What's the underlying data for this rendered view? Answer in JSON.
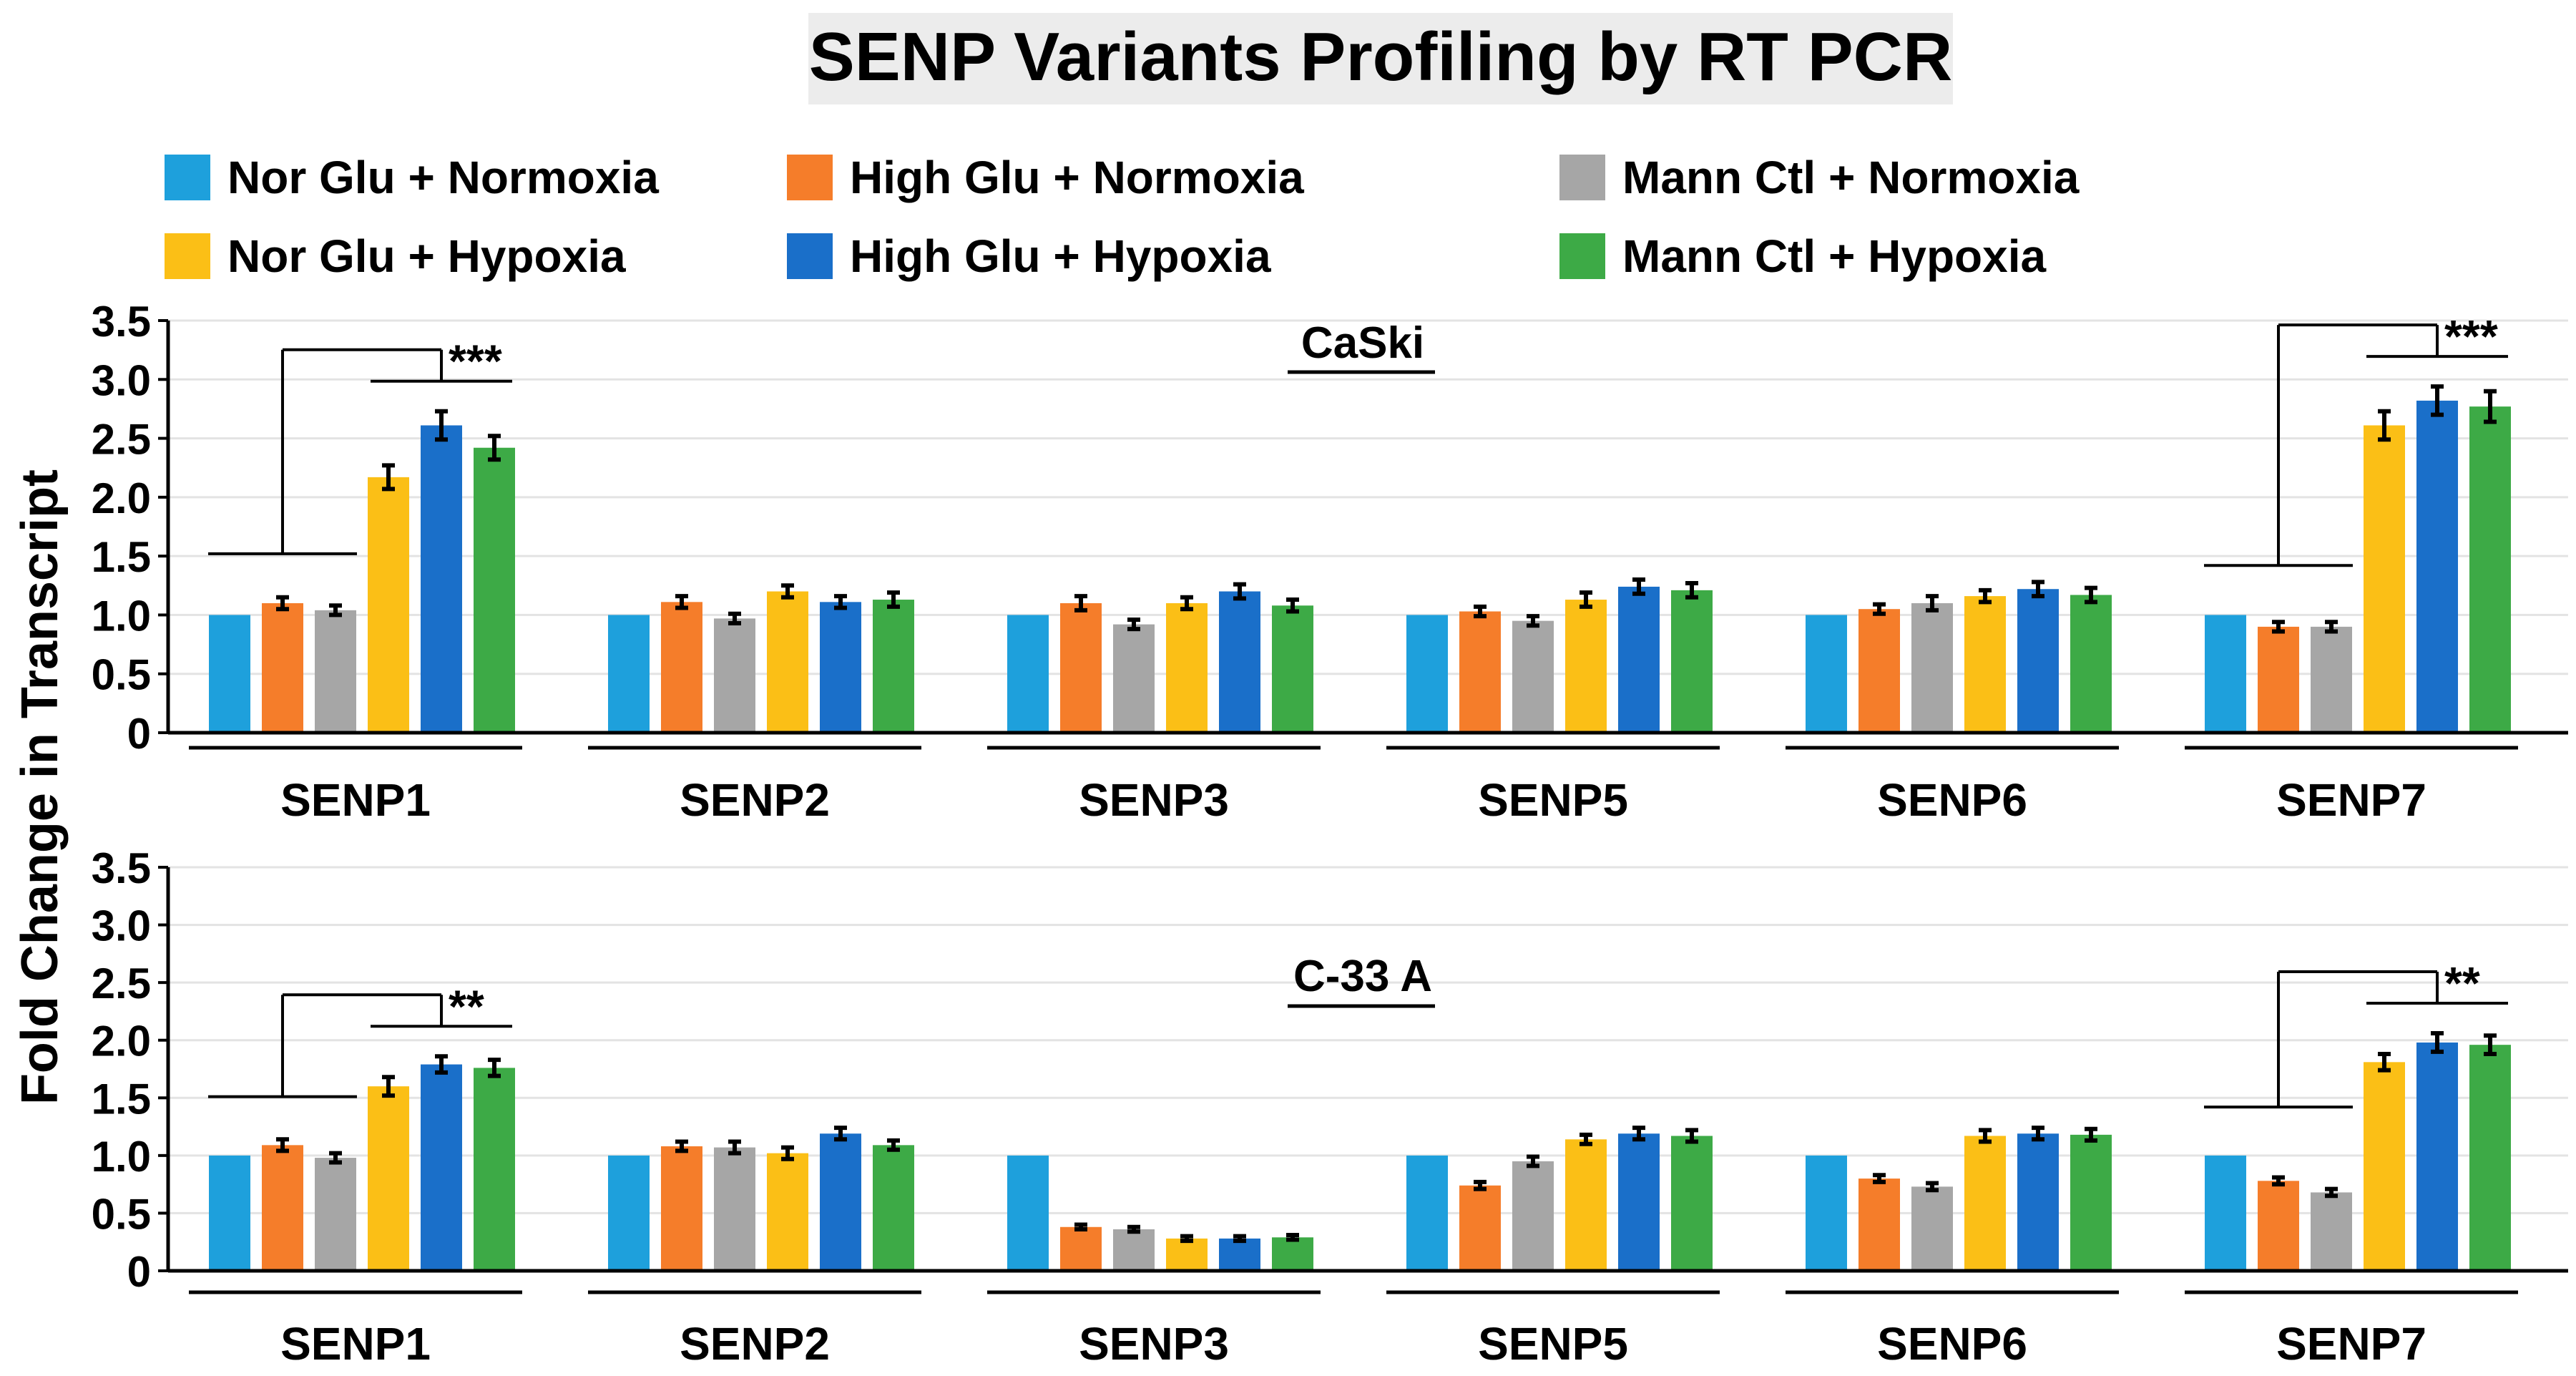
{
  "chart_data": {
    "type": "bar",
    "title": "SENP Variants Profiling by RT PCR",
    "ylabel": "Fold Change in Transcript",
    "ylim": [
      0,
      3.5
    ],
    "yticks": [
      "0",
      "0.5",
      "1.0",
      "1.5",
      "2.0",
      "2.5",
      "3.0",
      "3.5"
    ],
    "series_names": [
      "Nor Glu + Normoxia",
      "High Glu + Normoxia",
      "Mann Ctl + Normoxia",
      "Nor Glu + Hypoxia",
      "High Glu + Hypoxia",
      "Mann Ctl + Hypoxia"
    ],
    "series_colors": [
      "#1ea0dc",
      "#f57d2a",
      "#a6a6a6",
      "#fbbf16",
      "#1a6fc9",
      "#3daa46"
    ],
    "legend": [
      {
        "label": "Nor Glu + Normoxia",
        "color": "#1ea0dc"
      },
      {
        "label": "High Glu + Normoxia",
        "color": "#f57d2a"
      },
      {
        "label": "Mann Ctl + Normoxia",
        "color": "#a6a6a6"
      },
      {
        "label": "Nor Glu + Hypoxia",
        "color": "#fbbf16"
      },
      {
        "label": "High Glu + Hypoxia",
        "color": "#1a6fc9"
      },
      {
        "label": "Mann Ctl + Hypoxia",
        "color": "#3daa46"
      }
    ],
    "categories": [
      "SENP1",
      "SENP2",
      "SENP3",
      "SENP5",
      "SENP6",
      "SENP7"
    ],
    "panels": [
      {
        "label": "CaSki",
        "values": [
          [
            1.0,
            1.1,
            1.04,
            2.17,
            2.61,
            2.42
          ],
          [
            1.0,
            1.11,
            0.97,
            1.2,
            1.11,
            1.13
          ],
          [
            1.0,
            1.1,
            0.92,
            1.1,
            1.2,
            1.08
          ],
          [
            1.0,
            1.03,
            0.95,
            1.13,
            1.24,
            1.21
          ],
          [
            1.0,
            1.05,
            1.1,
            1.16,
            1.22,
            1.17
          ],
          [
            1.0,
            0.9,
            0.9,
            2.61,
            2.82,
            2.77
          ]
        ],
        "errors": [
          [
            0.0,
            0.05,
            0.04,
            0.1,
            0.12,
            0.1
          ],
          [
            0.0,
            0.05,
            0.04,
            0.05,
            0.05,
            0.06
          ],
          [
            0.0,
            0.06,
            0.04,
            0.05,
            0.06,
            0.05
          ],
          [
            0.0,
            0.04,
            0.04,
            0.06,
            0.06,
            0.06
          ],
          [
            0.0,
            0.04,
            0.06,
            0.05,
            0.06,
            0.06
          ],
          [
            0.0,
            0.04,
            0.04,
            0.12,
            0.12,
            0.13
          ]
        ],
        "annotations": [
          {
            "category": "SENP1",
            "text": "***"
          },
          {
            "category": "SENP7",
            "text": "***"
          }
        ]
      },
      {
        "label": "C-33 A",
        "values": [
          [
            1.0,
            1.09,
            0.98,
            1.6,
            1.79,
            1.76
          ],
          [
            1.0,
            1.08,
            1.07,
            1.02,
            1.19,
            1.09
          ],
          [
            1.0,
            0.38,
            0.36,
            0.28,
            0.28,
            0.29
          ],
          [
            1.0,
            0.74,
            0.95,
            1.14,
            1.19,
            1.17
          ],
          [
            1.0,
            0.8,
            0.73,
            1.17,
            1.19,
            1.18
          ],
          [
            1.0,
            0.78,
            0.68,
            1.81,
            1.98,
            1.96
          ]
        ],
        "errors": [
          [
            0.0,
            0.05,
            0.04,
            0.08,
            0.07,
            0.07
          ],
          [
            0.0,
            0.04,
            0.05,
            0.05,
            0.05,
            0.04
          ],
          [
            0.0,
            0.02,
            0.02,
            0.02,
            0.02,
            0.02
          ],
          [
            0.0,
            0.03,
            0.04,
            0.04,
            0.05,
            0.05
          ],
          [
            0.0,
            0.03,
            0.03,
            0.05,
            0.05,
            0.05
          ],
          [
            0.0,
            0.03,
            0.03,
            0.07,
            0.08,
            0.08
          ]
        ],
        "annotations": [
          {
            "category": "SENP1",
            "text": "**"
          },
          {
            "category": "SENP7",
            "text": "**"
          }
        ]
      }
    ]
  }
}
